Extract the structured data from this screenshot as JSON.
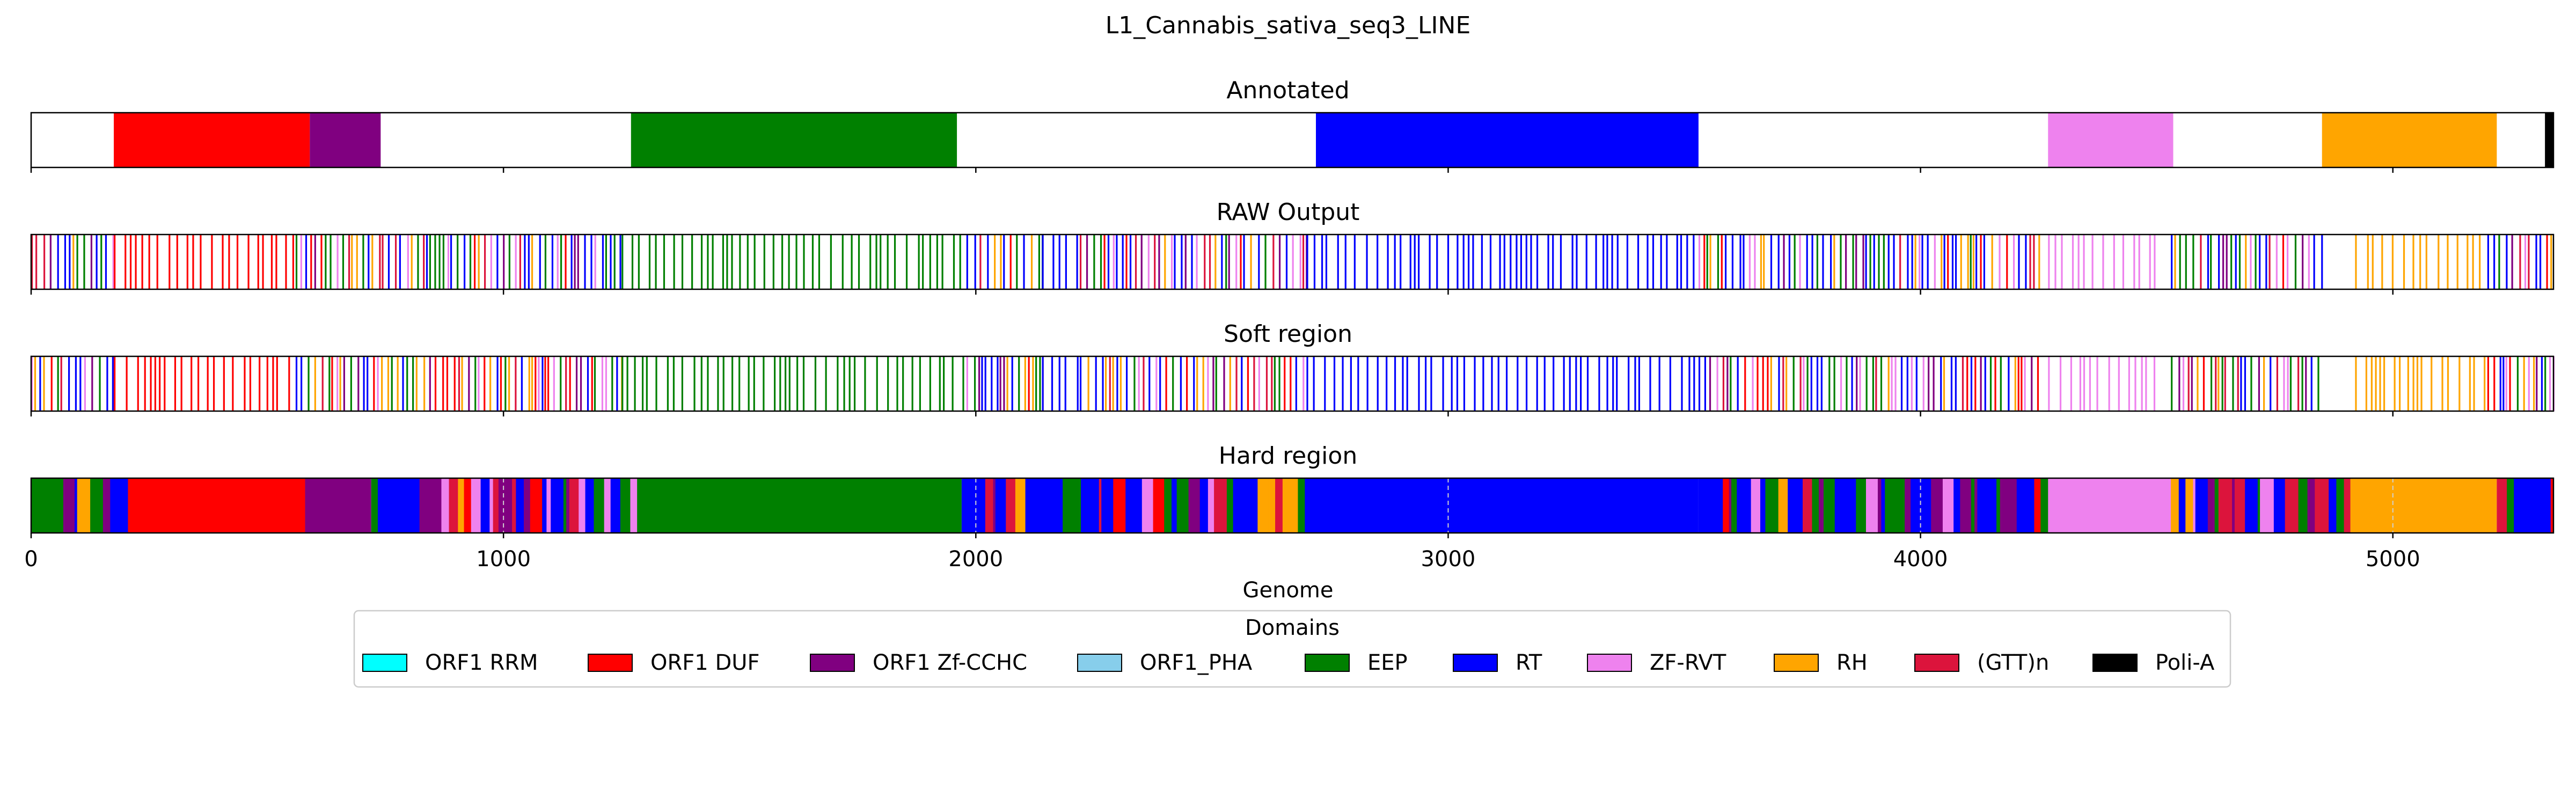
{
  "chart_data": {
    "type": "heatmap",
    "title": "L1_Cannabis_sativa_seq3_LINE",
    "xlabel": "Genome",
    "xlim": [
      0,
      5340
    ],
    "x_ticks": [
      0,
      1000,
      2000,
      3000,
      4000,
      5000
    ],
    "tracks": [
      {
        "title": "Annotated",
        "style": "solid",
        "segments": [
          {
            "domain": "ORF1 DUF",
            "start": 175,
            "end": 590
          },
          {
            "domain": "ORF1 Zf-CCHC",
            "start": 590,
            "end": 740
          },
          {
            "domain": "EEP",
            "start": 1270,
            "end": 1960
          },
          {
            "domain": "RT",
            "start": 2720,
            "end": 3530
          },
          {
            "domain": "ZF-RVT",
            "start": 4270,
            "end": 4535
          },
          {
            "domain": "RH",
            "start": 4850,
            "end": 5220
          },
          {
            "domain": "Poli-A",
            "start": 5322,
            "end": 5340
          }
        ]
      },
      {
        "title": "RAW Output",
        "style": "lines",
        "segments": [
          {
            "domain": "mixed",
            "start": 0,
            "end": 175
          },
          {
            "domain": "ORF1 DUF",
            "start": 175,
            "end": 560
          },
          {
            "domain": "mixed",
            "start": 560,
            "end": 1250
          },
          {
            "domain": "EEP",
            "start": 1250,
            "end": 1980
          },
          {
            "domain": "mixed",
            "start": 1980,
            "end": 2140
          },
          {
            "domain": "RT",
            "start": 2140,
            "end": 2220
          },
          {
            "domain": "mixed",
            "start": 2220,
            "end": 2700
          },
          {
            "domain": "RT",
            "start": 2700,
            "end": 3530
          },
          {
            "domain": "mixed",
            "start": 3530,
            "end": 4250
          },
          {
            "domain": "ZF-RVT",
            "start": 4270,
            "end": 4500
          },
          {
            "domain": "mixed",
            "start": 4530,
            "end": 4850
          },
          {
            "domain": "RH",
            "start": 4920,
            "end": 5200
          },
          {
            "domain": "mixed",
            "start": 5200,
            "end": 5340
          }
        ]
      },
      {
        "title": "Soft region",
        "style": "lines",
        "segments": [
          {
            "domain": "mixed",
            "start": 0,
            "end": 175
          },
          {
            "domain": "ORF1 DUF",
            "start": 175,
            "end": 560
          },
          {
            "domain": "mixed",
            "start": 560,
            "end": 1250
          },
          {
            "domain": "EEP",
            "start": 1250,
            "end": 1980
          },
          {
            "domain": "mixed",
            "start": 1980,
            "end": 2140
          },
          {
            "domain": "RT",
            "start": 2140,
            "end": 2220
          },
          {
            "domain": "mixed",
            "start": 2220,
            "end": 2700
          },
          {
            "domain": "RT",
            "start": 2700,
            "end": 3530
          },
          {
            "domain": "mixed",
            "start": 3530,
            "end": 4250
          },
          {
            "domain": "ZF-RVT",
            "start": 4270,
            "end": 4500
          },
          {
            "domain": "mixed",
            "start": 4530,
            "end": 4850
          },
          {
            "domain": "RH",
            "start": 4920,
            "end": 5200
          },
          {
            "domain": "mixed",
            "start": 5200,
            "end": 5340
          }
        ]
      },
      {
        "title": "Hard region",
        "style": "solid",
        "segments": [
          {
            "domain": "mixed",
            "start": 0,
            "end": 205
          },
          {
            "domain": "ORF1 DUF",
            "start": 205,
            "end": 580
          },
          {
            "domain": "ORF1 Zf-CCHC",
            "start": 580,
            "end": 720
          },
          {
            "domain": "mixed",
            "start": 720,
            "end": 1290
          },
          {
            "domain": "EEP",
            "start": 1290,
            "end": 1970
          },
          {
            "domain": "mixed",
            "start": 1970,
            "end": 2700
          },
          {
            "domain": "RT",
            "start": 2700,
            "end": 3530
          },
          {
            "domain": "mixed",
            "start": 3530,
            "end": 4270
          },
          {
            "domain": "ZF-RVT",
            "start": 4270,
            "end": 4530
          },
          {
            "domain": "mixed",
            "start": 4530,
            "end": 4910
          },
          {
            "domain": "RH",
            "start": 4910,
            "end": 5220
          },
          {
            "domain": "mixed",
            "start": 5220,
            "end": 5340
          }
        ]
      }
    ],
    "legend": {
      "title": "Domains",
      "placement": "bottom-center",
      "entries": [
        {
          "label": "ORF1 RRM",
          "color": "#00ffff"
        },
        {
          "label": "ORF1 DUF",
          "color": "#ff0000"
        },
        {
          "label": "ORF1 Zf-CCHC",
          "color": "#800080"
        },
        {
          "label": "ORF1_PHA",
          "color": "#87ceeb"
        },
        {
          "label": "EEP",
          "color": "#008000"
        },
        {
          "label": "RT",
          "color": "#0000ff"
        },
        {
          "label": "ZF-RVT",
          "color": "#ee82ee"
        },
        {
          "label": "RH",
          "color": "#ffa500"
        },
        {
          "label": "(GTT)n",
          "color": "#dc143c"
        },
        {
          "label": "Poli-A",
          "color": "#000000"
        }
      ]
    }
  }
}
